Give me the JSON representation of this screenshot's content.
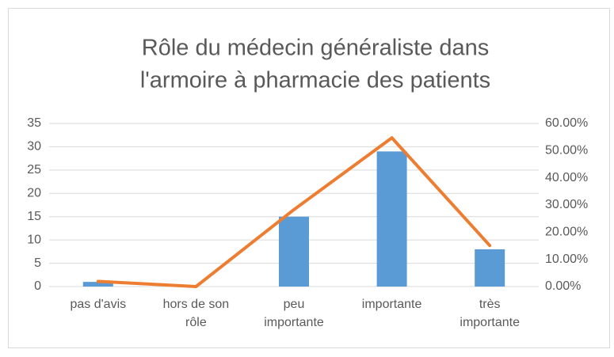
{
  "chart_data": {
    "type": "bar-line",
    "title": [
      "Rôle du médecin généraliste dans",
      "l'armoire à pharmacie des patients"
    ],
    "categories": [
      "pas d'avis",
      "hors de son rôle",
      "peu importante",
      "importante",
      "très importante"
    ],
    "series": [
      {
        "type": "bar",
        "color": "#5b9bd5",
        "values": [
          1,
          0,
          15,
          29,
          8
        ]
      },
      {
        "type": "line",
        "axis": "y2",
        "color": "#ed7d31",
        "values": [
          1.89,
          0,
          28.3,
          54.72,
          15.09
        ]
      }
    ],
    "ylim": [
      0,
      35
    ],
    "yticks": [
      0,
      5,
      10,
      15,
      20,
      25,
      30,
      35
    ],
    "y2lim": [
      0,
      60
    ],
    "y2ticks": [
      {
        "value": 0,
        "label": "0.00%"
      },
      {
        "value": 10,
        "label": "10.00%"
      },
      {
        "value": 20,
        "label": "20.00%"
      },
      {
        "value": 30,
        "label": "30.00%"
      },
      {
        "value": 40,
        "label": "40.00%"
      },
      {
        "value": 50,
        "label": "50.00%"
      },
      {
        "value": 60,
        "label": "60.00%"
      }
    ],
    "grid": true
  }
}
